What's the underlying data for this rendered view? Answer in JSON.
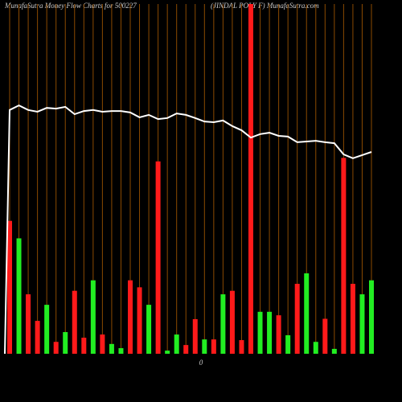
{
  "chart_data": {
    "type": "bar-line",
    "title": "MunafaSutra  Money Flow  Charts for 500227",
    "subtitle": "(JINDAL  POLY F) MunafaSutra.com",
    "x_label": "0",
    "categories": [
      null,
      null,
      null,
      null,
      null,
      null,
      null,
      null,
      null,
      null,
      null,
      null,
      null,
      null,
      null,
      null,
      null,
      null,
      null,
      null,
      null,
      null,
      null,
      null,
      null,
      null,
      null,
      null,
      null,
      null,
      null,
      null,
      null,
      null,
      null,
      null,
      null,
      null,
      null,
      null
    ],
    "values": [
      38,
      33,
      17,
      9.4,
      14,
      3.4,
      6.2,
      18,
      4.6,
      21,
      5.5,
      2.8,
      1.6,
      21,
      19,
      14,
      55,
      0.9,
      5.5,
      2.5,
      9.9,
      4.1,
      4.1,
      17,
      18,
      3.9,
      100,
      12,
      12,
      11,
      5.3,
      20,
      23,
      3.4,
      10,
      1.4,
      56,
      20,
      17,
      21
    ],
    "colors": [
      "#ff1a1a",
      "#22ee22",
      "#ff1a1a",
      "#ff1a1a",
      "#22ee22",
      "#ff1a1a",
      "#22ee22",
      "#ff1a1a",
      "#ff1a1a",
      "#22ee22",
      "#ff1a1a",
      "#22ee22",
      "#22ee22",
      "#ff1a1a",
      "#ff1a1a",
      "#22ee22",
      "#ff1a1a",
      "#22ee22",
      "#22ee22",
      "#ff1a1a",
      "#ff1a1a",
      "#22ee22",
      "#ff1a1a",
      "#22ee22",
      "#ff1a1a",
      "#ff1a1a",
      "#ff1a1a",
      "#22ee22",
      "#22ee22",
      "#ff1a1a",
      "#22ee22",
      "#ff1a1a",
      "#22ee22",
      "#22ee22",
      "#ff1a1a",
      "#22ee22",
      "#ff1a1a",
      "#ff1a1a",
      "#22ee22",
      "#22ee22"
    ],
    "line_values": [
      69.7,
      71.0,
      69.7,
      69.2,
      70.3,
      70.1,
      70.6,
      68.5,
      69.4,
      69.7,
      69.2,
      69.4,
      69.4,
      69.0,
      67.6,
      68.3,
      67.1,
      67.4,
      68.7,
      68.3,
      67.4,
      66.4,
      66.2,
      66.7,
      65.1,
      63.9,
      61.8,
      62.8,
      63.2,
      62.3,
      62.1,
      60.5,
      60.7,
      60.9,
      60.5,
      60.2,
      57.0,
      55.9,
      56.8,
      57.7
    ],
    "line_color": "#ffffff",
    "grid_color": "#8b4a00",
    "ylim": [
      0,
      100
    ]
  }
}
